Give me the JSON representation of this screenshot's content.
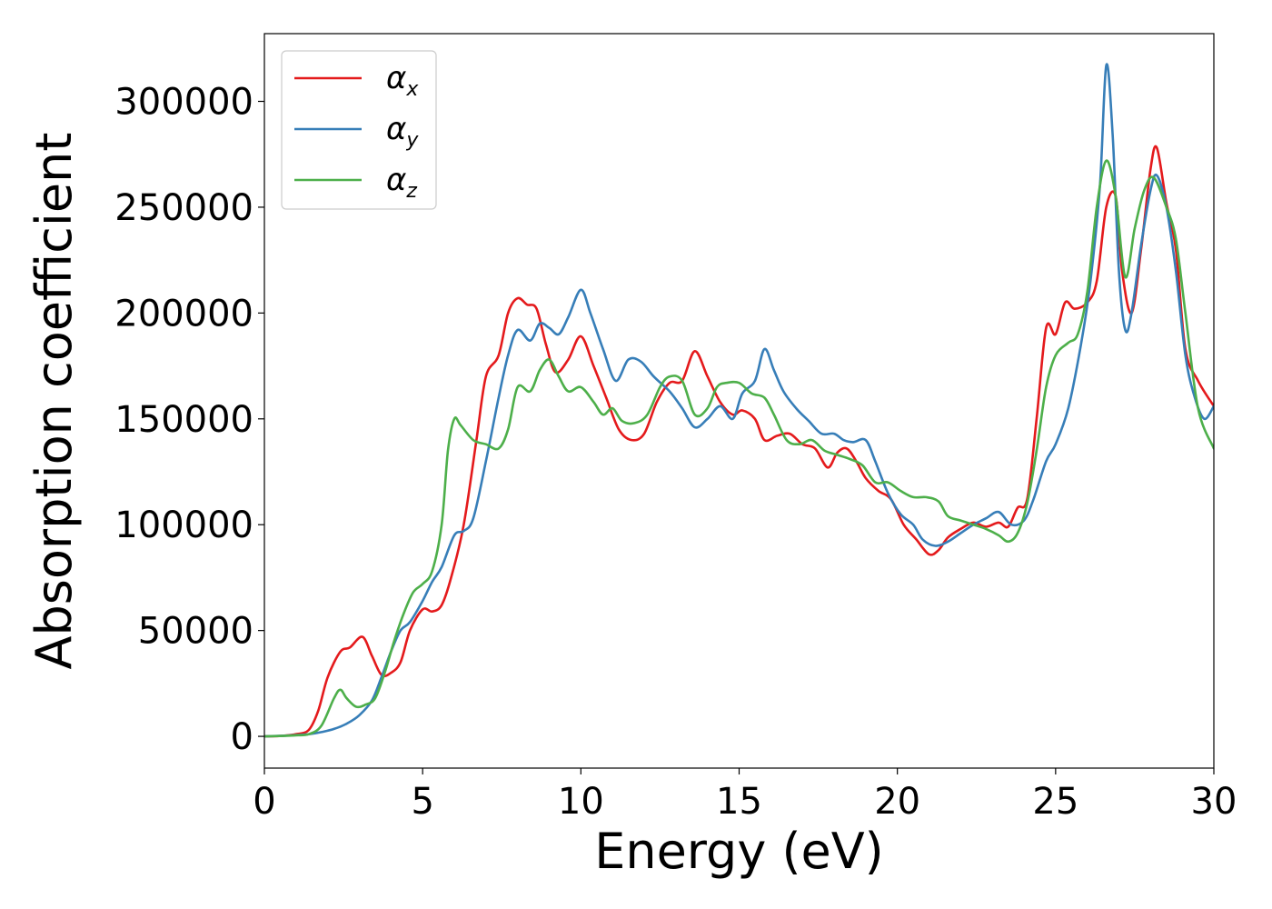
{
  "chart_data": {
    "type": "line",
    "title": "",
    "xlabel": "Energy (eV)",
    "ylabel": "Absorption coefficient",
    "xlim": [
      0,
      30
    ],
    "ylim": [
      -15000,
      332000
    ],
    "xticks": [
      0,
      5,
      10,
      15,
      20,
      25,
      30
    ],
    "yticks": [
      0,
      50000,
      100000,
      150000,
      200000,
      250000,
      300000
    ],
    "xtick_labels": [
      "0",
      "5",
      "10",
      "15",
      "20",
      "25",
      "30"
    ],
    "ytick_labels": [
      "0",
      "50000",
      "100000",
      "150000",
      "200000",
      "250000",
      "300000"
    ],
    "grid": false,
    "legend_position": "top-left",
    "series": [
      {
        "name": "αx",
        "symbol": "α",
        "sub": "x",
        "color": "#e41a1c",
        "x": [
          0,
          0.6,
          1.0,
          1.4,
          1.7,
          2.0,
          2.4,
          2.7,
          3.1,
          3.4,
          3.7,
          4.0,
          4.3,
          4.6,
          5.0,
          5.3,
          5.6,
          5.9,
          6.3,
          6.7,
          7.0,
          7.4,
          7.7,
          8.0,
          8.3,
          8.6,
          8.9,
          9.2,
          9.6,
          10.0,
          10.4,
          10.8,
          11.2,
          11.6,
          12.0,
          12.4,
          12.8,
          13.2,
          13.6,
          14.0,
          14.4,
          14.8,
          15.1,
          15.5,
          15.8,
          16.2,
          16.6,
          17.0,
          17.4,
          17.8,
          18.1,
          18.4,
          18.7,
          19.0,
          19.4,
          19.8,
          20.2,
          20.6,
          21.0,
          21.3,
          21.6,
          22.0,
          22.4,
          22.8,
          23.2,
          23.5,
          23.8,
          24.1,
          24.4,
          24.7,
          25.0,
          25.3,
          25.6,
          26.0,
          26.3,
          26.6,
          26.9,
          27.1,
          27.4,
          27.7,
          28.0,
          28.2,
          28.5,
          28.8,
          29.1,
          29.5,
          30.0
        ],
        "y": [
          0,
          300,
          1000,
          3000,
          12000,
          28000,
          40000,
          42000,
          47000,
          38000,
          29000,
          30000,
          35000,
          50000,
          60000,
          59000,
          62000,
          75000,
          100000,
          140000,
          170000,
          180000,
          200000,
          207000,
          204000,
          202000,
          185000,
          172000,
          178000,
          189000,
          175000,
          160000,
          145000,
          140000,
          143000,
          158000,
          167000,
          168000,
          182000,
          170000,
          158000,
          152000,
          154000,
          150000,
          140000,
          142000,
          143000,
          138000,
          136000,
          127000,
          134000,
          136000,
          130000,
          122000,
          116000,
          112000,
          100000,
          93000,
          86000,
          88000,
          94000,
          98000,
          101000,
          99000,
          101000,
          99000,
          108000,
          112000,
          150000,
          193000,
          190000,
          205000,
          202000,
          205000,
          215000,
          250000,
          255000,
          220000,
          200000,
          230000,
          268000,
          278000,
          252000,
          230000,
          183000,
          168000,
          156000
        ]
      },
      {
        "name": "αy",
        "symbol": "α",
        "sub": "y",
        "color": "#377eb8",
        "x": [
          0,
          0.6,
          1.0,
          1.4,
          1.8,
          2.2,
          2.6,
          3.0,
          3.4,
          3.7,
          4.0,
          4.3,
          4.6,
          5.0,
          5.3,
          5.6,
          6.0,
          6.3,
          6.6,
          7.0,
          7.4,
          7.7,
          8.0,
          8.4,
          8.7,
          9.0,
          9.3,
          9.6,
          10.0,
          10.3,
          10.7,
          11.1,
          11.5,
          11.9,
          12.3,
          12.8,
          13.2,
          13.6,
          14.0,
          14.4,
          14.8,
          15.1,
          15.5,
          15.8,
          16.1,
          16.4,
          16.8,
          17.2,
          17.6,
          18.0,
          18.3,
          18.6,
          19.0,
          19.3,
          19.7,
          20.1,
          20.5,
          20.8,
          21.2,
          21.6,
          22.0,
          22.4,
          22.8,
          23.2,
          23.6,
          24.0,
          24.3,
          24.7,
          25.0,
          25.4,
          25.8,
          26.1,
          26.4,
          26.6,
          26.8,
          27.0,
          27.2,
          27.4,
          27.7,
          28.0,
          28.2,
          28.5,
          28.8,
          29.1,
          29.4,
          29.7,
          30.0
        ],
        "y": [
          0,
          300,
          600,
          1000,
          2000,
          3500,
          6000,
          10000,
          17000,
          28000,
          40000,
          50000,
          54000,
          64000,
          73000,
          80000,
          95000,
          97000,
          103000,
          130000,
          160000,
          180000,
          192000,
          187000,
          195000,
          193000,
          190000,
          198000,
          211000,
          200000,
          183000,
          168000,
          178000,
          177000,
          170000,
          163000,
          155000,
          146000,
          150000,
          156000,
          150000,
          162000,
          168000,
          183000,
          173000,
          163000,
          155000,
          149000,
          143000,
          143000,
          140000,
          139000,
          140000,
          130000,
          115000,
          105000,
          100000,
          93000,
          90000,
          92000,
          96000,
          100000,
          103000,
          106000,
          100000,
          102000,
          112000,
          130000,
          138000,
          155000,
          185000,
          215000,
          260000,
          317000,
          285000,
          220000,
          192000,
          200000,
          232000,
          258000,
          265000,
          250000,
          220000,
          180000,
          160000,
          150000,
          156000
        ]
      },
      {
        "name": "αz",
        "symbol": "α",
        "sub": "z",
        "color": "#4daf4a",
        "x": [
          0,
          0.6,
          1.0,
          1.4,
          1.8,
          2.2,
          2.4,
          2.6,
          2.9,
          3.2,
          3.5,
          3.8,
          4.1,
          4.4,
          4.7,
          5.0,
          5.3,
          5.6,
          5.8,
          6.0,
          6.2,
          6.6,
          7.0,
          7.4,
          7.7,
          8.0,
          8.4,
          8.7,
          9.0,
          9.3,
          9.6,
          10.0,
          10.4,
          10.7,
          11.0,
          11.3,
          11.7,
          12.1,
          12.5,
          12.8,
          13.2,
          13.6,
          14.0,
          14.3,
          14.6,
          15.0,
          15.4,
          15.8,
          16.1,
          16.5,
          16.9,
          17.3,
          17.7,
          18.1,
          18.5,
          18.9,
          19.3,
          19.7,
          20.1,
          20.5,
          20.9,
          21.3,
          21.6,
          22.0,
          22.4,
          22.8,
          23.2,
          23.5,
          23.8,
          24.1,
          24.4,
          24.7,
          25.0,
          25.4,
          25.7,
          26.0,
          26.3,
          26.6,
          26.9,
          27.2,
          27.5,
          27.8,
          28.1,
          28.5,
          28.8,
          29.1,
          29.5,
          30.0
        ],
        "y": [
          0,
          200,
          500,
          1000,
          5000,
          18000,
          22000,
          18000,
          14000,
          15000,
          18000,
          30000,
          45000,
          58000,
          68000,
          72000,
          78000,
          100000,
          135000,
          150000,
          147000,
          140000,
          138000,
          136000,
          145000,
          165000,
          163000,
          173000,
          178000,
          170000,
          163000,
          165000,
          158000,
          152000,
          155000,
          149000,
          148000,
          152000,
          165000,
          170000,
          168000,
          152000,
          155000,
          165000,
          167000,
          167000,
          162000,
          160000,
          152000,
          140000,
          138000,
          140000,
          135000,
          133000,
          131000,
          128000,
          120000,
          120000,
          116000,
          113000,
          113000,
          111000,
          104000,
          102000,
          100000,
          98000,
          95000,
          92000,
          96000,
          110000,
          135000,
          165000,
          180000,
          186000,
          190000,
          210000,
          250000,
          272000,
          255000,
          217000,
          240000,
          258000,
          264000,
          250000,
          235000,
          200000,
          155000,
          136000
        ]
      }
    ]
  }
}
